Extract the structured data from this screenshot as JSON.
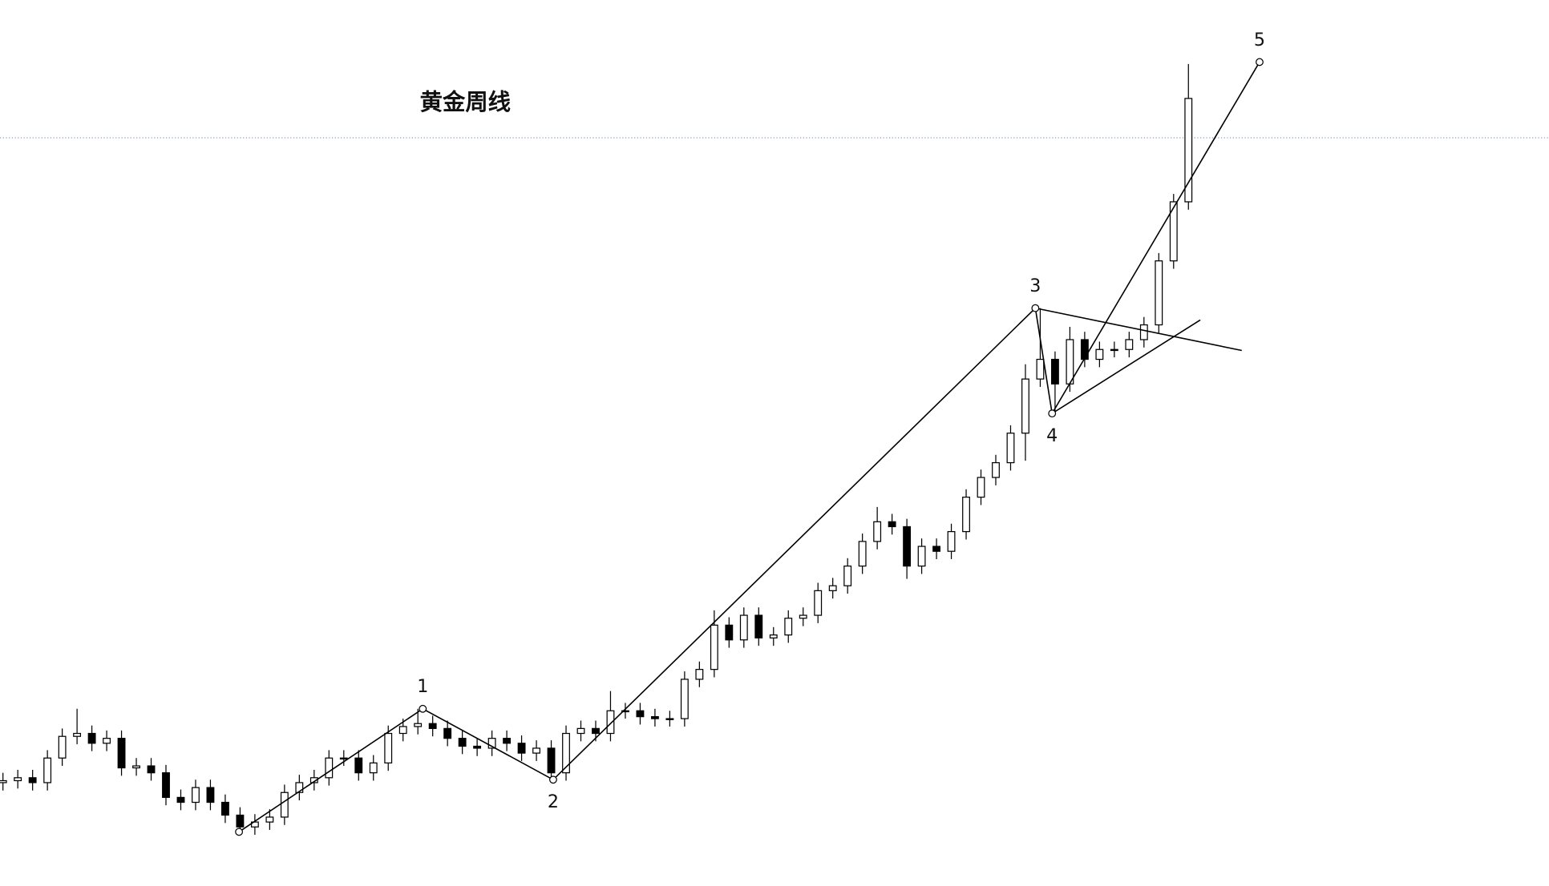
{
  "chart_data": {
    "type": "candlestick",
    "title": "黄金周线",
    "ylim": [
      0,
      900
    ],
    "price_line": 760,
    "open": [
      105,
      107,
      110,
      105,
      130,
      152,
      155,
      145,
      150,
      120,
      122,
      115,
      90,
      85,
      100,
      85,
      72,
      60,
      65,
      70,
      95,
      105,
      110,
      130,
      130,
      115,
      125,
      155,
      162,
      165,
      160,
      150,
      142,
      140,
      150,
      145,
      135,
      140,
      115,
      155,
      160,
      155,
      178,
      178,
      172,
      170,
      170,
      210,
      220,
      265,
      250,
      275,
      252,
      255,
      272,
      275,
      300,
      305,
      325,
      350,
      370,
      365,
      325,
      345,
      340,
      360,
      395,
      415,
      430,
      460,
      515,
      535,
      510,
      555,
      535,
      545,
      545,
      555,
      570,
      635,
      695
    ],
    "high": [
      115,
      118,
      118,
      138,
      160,
      180,
      163,
      158,
      158,
      130,
      130,
      123,
      98,
      108,
      108,
      93,
      80,
      73,
      78,
      103,
      113,
      118,
      138,
      138,
      138,
      133,
      163,
      170,
      180,
      173,
      168,
      158,
      150,
      158,
      158,
      153,
      148,
      148,
      163,
      168,
      168,
      198,
      186,
      186,
      180,
      178,
      218,
      228,
      280,
      273,
      283,
      283,
      263,
      280,
      283,
      308,
      313,
      333,
      358,
      385,
      378,
      373,
      353,
      353,
      368,
      403,
      423,
      438,
      468,
      530,
      587,
      543,
      568,
      563,
      553,
      553,
      563,
      578,
      643,
      703,
      835
    ],
    "low": [
      97,
      99,
      97,
      97,
      122,
      144,
      137,
      137,
      112,
      112,
      107,
      82,
      77,
      77,
      77,
      64,
      55,
      52,
      57,
      62,
      87,
      97,
      102,
      122,
      107,
      107,
      117,
      147,
      154,
      152,
      142,
      134,
      132,
      132,
      137,
      127,
      127,
      108,
      107,
      147,
      147,
      147,
      170,
      164,
      162,
      162,
      162,
      202,
      212,
      242,
      242,
      244,
      244,
      247,
      264,
      267,
      292,
      297,
      317,
      342,
      357,
      312,
      317,
      332,
      332,
      352,
      387,
      407,
      422,
      432,
      507,
      480,
      502,
      527,
      527,
      537,
      537,
      547,
      562,
      627,
      687
    ],
    "close": [
      107,
      110,
      105,
      130,
      152,
      155,
      145,
      150,
      120,
      122,
      115,
      90,
      85,
      100,
      85,
      72,
      60,
      65,
      70,
      95,
      105,
      110,
      130,
      130,
      115,
      125,
      155,
      162,
      165,
      160,
      150,
      142,
      140,
      150,
      145,
      135,
      140,
      115,
      155,
      160,
      155,
      178,
      178,
      172,
      170,
      170,
      210,
      220,
      265,
      250,
      275,
      252,
      255,
      272,
      275,
      300,
      305,
      325,
      350,
      370,
      365,
      325,
      345,
      340,
      360,
      395,
      415,
      430,
      460,
      515,
      535,
      510,
      555,
      535,
      545,
      545,
      555,
      570,
      635,
      695,
      800
    ],
    "waves": [
      {
        "label": null,
        "x": 15.93,
        "y": 55
      },
      {
        "label": "1",
        "x": 28.33,
        "y": 180
      },
      {
        "label": "2",
        "x": 37.13,
        "y": 108
      },
      {
        "label": "3",
        "x": 69.67,
        "y": 587
      },
      {
        "label": "4",
        "x": 70.8,
        "y": 480
      },
      {
        "label": "5",
        "x": 84.8,
        "y": 837
      }
    ],
    "trendlines": [
      {
        "x": [
          69.67,
          83.6
        ],
        "y": [
          587,
          544
        ]
      },
      {
        "x": [
          70.8,
          80.8
        ],
        "y": [
          480,
          575
        ]
      }
    ]
  }
}
